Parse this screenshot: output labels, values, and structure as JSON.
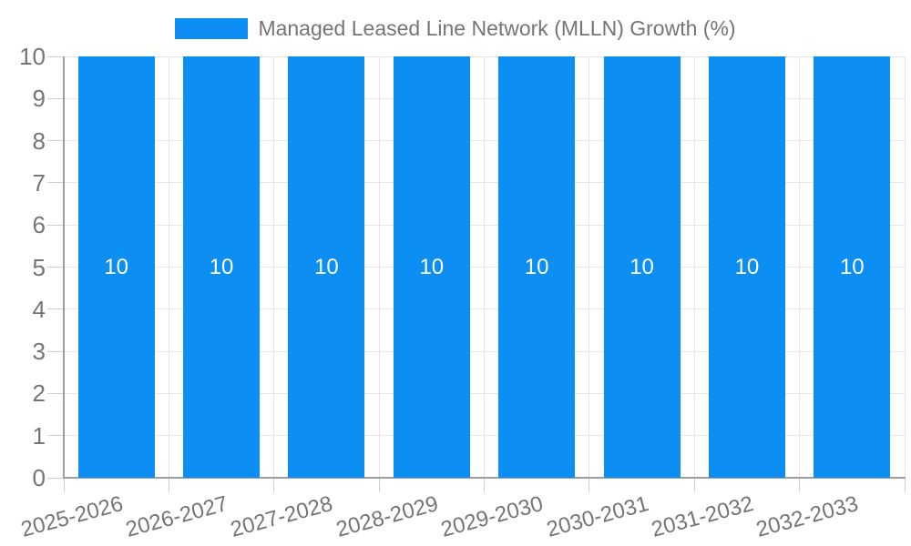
{
  "legend": {
    "items": [
      {
        "label": "Managed Leased Line Network (MLLN) Growth (%)",
        "color": "#0d8ef2"
      }
    ]
  },
  "chart_data": {
    "type": "bar",
    "title": "",
    "categories": [
      "2025-2026",
      "2026-2027",
      "2027-2028",
      "2028-2029",
      "2029-2030",
      "2030-2031",
      "2031-2032",
      "2032-2033"
    ],
    "series": [
      {
        "name": "Managed Leased Line Network (MLLN) Growth (%)",
        "values": [
          10,
          10,
          10,
          10,
          10,
          10,
          10,
          10
        ]
      }
    ],
    "bar_labels": [
      "10",
      "10",
      "10",
      "10",
      "10",
      "10",
      "10",
      "10"
    ],
    "xlabel": "",
    "ylabel": "",
    "ylim": [
      0,
      10
    ],
    "yticks": [
      0,
      1,
      2,
      3,
      4,
      5,
      6,
      7,
      8,
      9,
      10
    ],
    "grid": true,
    "legend_position": "top-center",
    "colors": {
      "bar": "#0d8ef2",
      "bar_label": "#ffffff",
      "axis": "#9e9e9e",
      "gridline": "#e6e6e6",
      "tick": "#cfcfcf",
      "text": "#757575",
      "background": "#ffffff"
    }
  }
}
